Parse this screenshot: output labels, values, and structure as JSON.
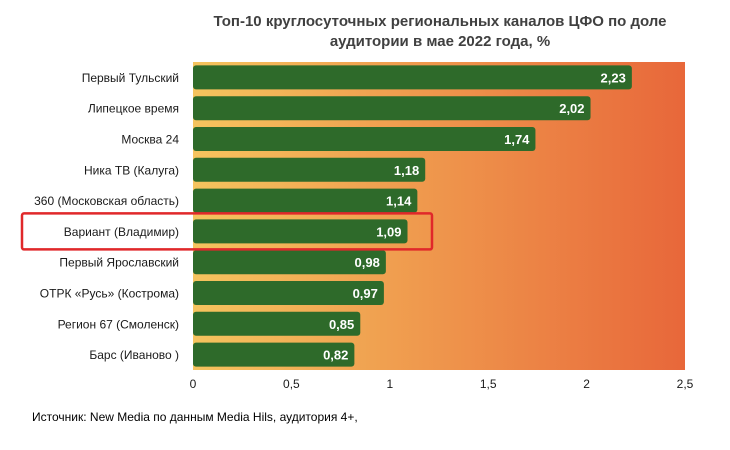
{
  "chart_data": {
    "type": "bar",
    "orientation": "horizontal",
    "title_line1": "Топ-10 круглосуточных региональных каналов ЦФО по доле",
    "title_line2": "аудитории в мае 2022 года, %",
    "categories": [
      "Первый Тульский",
      "Липецкое время",
      "Москва 24",
      "Ника ТВ (Калуга)",
      "360 (Московская область)",
      "Вариант (Владимир)",
      "Первый Ярославский",
      "ОТРК «Русь» (Кострома)",
      "Регион 67 (Смоленск)",
      "Барс (Иваново )"
    ],
    "values": [
      2.23,
      2.02,
      1.74,
      1.18,
      1.14,
      1.09,
      0.98,
      0.97,
      0.85,
      0.82
    ],
    "value_labels": [
      "2,23",
      "2,02",
      "1,74",
      "1,18",
      "1,14",
      "1,09",
      "0,98",
      "0,97",
      "0,85",
      "0,82"
    ],
    "xlim": [
      0,
      2.5
    ],
    "xticks": [
      0,
      0.5,
      1,
      1.5,
      2,
      2.5
    ],
    "xtick_labels": [
      "0",
      "0,5",
      "1",
      "1,5",
      "2",
      "2,5"
    ],
    "highlighted_category": "Вариант (Владимир)",
    "colors": {
      "bar": "#2e6a2a",
      "background_start": "#f5c45e",
      "background_end": "#e8673a",
      "highlight_border": "#e0282a",
      "label_text": "#ffffff"
    }
  },
  "source_text": "Источник: New Media по данным Media Hils, аудитория 4+,"
}
